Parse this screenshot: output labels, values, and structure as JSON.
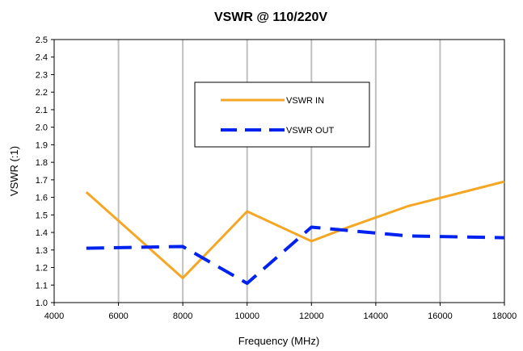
{
  "chart_data": {
    "type": "line",
    "title": "VSWR @ 110/220V",
    "xlabel": "Frequency (MHz)",
    "ylabel": "VSWR (:1)",
    "xlim": [
      4000,
      18000
    ],
    "ylim": [
      1.0,
      2.5
    ],
    "x_ticks": [
      "4000",
      "6000",
      "8000",
      "10000",
      "12000",
      "14000",
      "16000",
      "18000"
    ],
    "y_ticks": [
      "1.0",
      "1.1",
      "1.2",
      "1.3",
      "1.4",
      "1.5",
      "1.6",
      "1.7",
      "1.8",
      "1.9",
      "2.0",
      "2.1",
      "2.2",
      "2.3",
      "2.4",
      "2.5"
    ],
    "grid": "vertical",
    "legend_position": "top-center",
    "series": [
      {
        "name": "VSWR IN",
        "color": "#F5A623",
        "style": "solid",
        "x": [
          5000,
          8000,
          10000,
          12000,
          13000,
          15000,
          18000
        ],
        "y": [
          1.63,
          1.14,
          1.52,
          1.35,
          1.42,
          1.55,
          1.69
        ]
      },
      {
        "name": "VSWR OUT",
        "color": "#0022EE",
        "style": "dashed",
        "x": [
          5000,
          8000,
          10000,
          12000,
          15000,
          18000
        ],
        "y": [
          1.31,
          1.32,
          1.11,
          1.43,
          1.38,
          1.37
        ]
      }
    ]
  }
}
